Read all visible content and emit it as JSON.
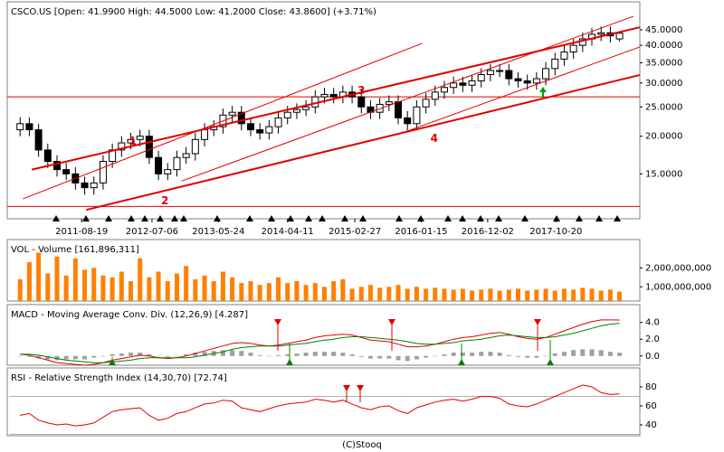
{
  "chart_data": [
    {
      "type": "candlestick",
      "title": "CSCO.US [Open: 41.9900 High: 44.5000 Low: 41.2000 Close: 43.8600] (+3.71%)",
      "log": true,
      "xlim": [
        -1.2,
        67.2
      ],
      "ylim": [
        10.8,
        54.6
      ],
      "yticks": [
        {
          "value": 15,
          "label": "15.0000"
        },
        {
          "value": 20,
          "label": "20.0000"
        },
        {
          "value": 25,
          "label": "25.0000"
        },
        {
          "value": 30,
          "label": "30.0000"
        },
        {
          "value": 35,
          "label": "35.0000"
        },
        {
          "value": 40,
          "label": "40.0000"
        },
        {
          "value": 45,
          "label": "45.0000"
        }
      ],
      "xticks": [
        {
          "value": 6.67,
          "label": "2011-08-19"
        },
        {
          "value": 14.3,
          "label": "2012-07-06"
        },
        {
          "value": 21.5,
          "label": "2013-05-24"
        },
        {
          "value": 29.0,
          "label": "2014-04-11"
        },
        {
          "value": 36.3,
          "label": "2015-02-27"
        },
        {
          "value": 43.5,
          "label": "2016-01-15"
        },
        {
          "value": 50.7,
          "label": "2016-12-02"
        },
        {
          "value": 58.1,
          "label": "2017-10-20"
        }
      ],
      "open": [
        21,
        22,
        21,
        18,
        16.5,
        15.5,
        15,
        14,
        13.5,
        14,
        16.5,
        18,
        19,
        19.5,
        20,
        17,
        15,
        15.5,
        17,
        17.5,
        19.5,
        21,
        21.5,
        23.5,
        24,
        22,
        21,
        20.5,
        21.5,
        23,
        24,
        24.5,
        25,
        27,
        27.5,
        27,
        28,
        27,
        25,
        24,
        25.5,
        26,
        23,
        22,
        25,
        26.5,
        28,
        29,
        30,
        29.5,
        30.5,
        32,
        33,
        33,
        31,
        30.5,
        30,
        31,
        33.5,
        36,
        38,
        40,
        42,
        43.5,
        44,
        41.99
      ],
      "high": [
        23.1,
        23.1,
        22.0,
        18.9,
        17.3,
        16.3,
        15.8,
        14.7,
        14.7,
        17.3,
        18.9,
        20.0,
        20.5,
        21.0,
        21.0,
        17.9,
        16.3,
        17.9,
        18.4,
        20.5,
        22.1,
        22.6,
        24.7,
        25.2,
        25.2,
        23.1,
        22.1,
        22.6,
        24.2,
        25.2,
        25.7,
        26.3,
        28.4,
        28.9,
        28.9,
        29.4,
        29.4,
        28.4,
        26.3,
        26.8,
        27.3,
        27.3,
        24.2,
        26.3,
        27.8,
        29.4,
        30.5,
        31.5,
        31.5,
        32.0,
        33.6,
        34.7,
        34.7,
        34.7,
        32.6,
        32.0,
        32.6,
        35.2,
        37.8,
        39.9,
        42.0,
        44.1,
        45.7,
        46.2,
        46.2,
        44.5
      ],
      "low": [
        20.0,
        20.0,
        17.1,
        15.7,
        14.7,
        14.3,
        13.3,
        12.8,
        12.8,
        13.3,
        15.7,
        17.1,
        18.1,
        18.5,
        16.2,
        14.3,
        14.3,
        14.7,
        16.2,
        16.6,
        18.5,
        20.0,
        20.4,
        22.3,
        20.9,
        20.0,
        19.5,
        19.5,
        20.4,
        21.9,
        22.8,
        23.3,
        23.8,
        25.7,
        25.7,
        25.7,
        25.7,
        23.8,
        22.8,
        22.8,
        24.2,
        21.9,
        20.9,
        20.9,
        23.8,
        25.2,
        26.6,
        27.6,
        28.0,
        28.0,
        29.0,
        30.4,
        31.4,
        29.5,
        29.0,
        28.5,
        28.5,
        29.5,
        31.8,
        34.2,
        36.1,
        38.0,
        39.9,
        41.3,
        40.9,
        41.2
      ],
      "close": [
        22,
        21,
        18,
        16.5,
        15.5,
        15,
        14,
        13.5,
        14,
        16.5,
        18,
        19,
        19.5,
        20,
        17,
        15,
        15.5,
        17,
        17.5,
        19.5,
        21,
        21.5,
        23.5,
        24,
        22,
        21,
        20.5,
        21.5,
        23,
        24,
        24.5,
        25,
        27,
        27.5,
        27,
        28,
        27,
        25,
        24,
        25.5,
        26,
        23,
        22,
        25,
        26.5,
        28,
        29,
        30,
        29.5,
        30.5,
        32,
        33,
        33,
        31,
        30.5,
        30,
        31,
        33.5,
        36,
        38,
        40,
        42,
        43.5,
        44,
        43,
        43.86
      ],
      "lines": [
        {
          "points": [
            [
              1.27,
              15.5
            ],
            [
              67.2,
              45.9
            ]
          ],
          "width": 2
        },
        {
          "points": [
            [
              7.16,
              11.4
            ],
            [
              67.2,
              31.9
            ]
          ],
          "width": 2
        },
        {
          "points": [
            [
              0.3,
              12.4
            ],
            [
              43.6,
              40.6
            ]
          ],
          "width": 1
        },
        {
          "points": [
            [
              17.5,
              14.2
            ],
            [
              66.5,
              49.9
            ]
          ],
          "width": 1
        },
        {
          "points": [
            [
              42,
              20.8
            ],
            [
              67.2,
              39.5
            ]
          ],
          "width": 1
        }
      ],
      "hlines": [
        27.0,
        11.7
      ],
      "line_color": "#e00000",
      "labels": [
        {
          "text": "1",
          "x": 12.2,
          "y": 19.2
        },
        {
          "text": "2",
          "x": 15.7,
          "y": 12.2
        },
        {
          "text": "3",
          "x": 37,
          "y": 28.3
        },
        {
          "text": "4",
          "x": 44.9,
          "y": 19.6
        }
      ]
    },
    {
      "type": "bar",
      "title": "VOL - Volume [161,896,311]",
      "xlim": [
        -1.2,
        67.2
      ],
      "ylim": [
        250000000,
        3350000000
      ],
      "color": "#ff8000",
      "yticks": [
        {
          "value": 1000000000,
          "label": "1,000,000,000"
        },
        {
          "value": 2000000000,
          "label": "2,000,000,000"
        }
      ],
      "values": [
        1400000000.0,
        2300000000.0,
        2800000000.0,
        1700000000.0,
        2600000000.0,
        1600000000.0,
        2500000000.0,
        1900000000.0,
        2000000000.0,
        1600000000.0,
        1500000000.0,
        1800000000.0,
        1300000000.0,
        2500000000.0,
        1500000000.0,
        1800000000.0,
        1300000000.0,
        1700000000.0,
        2100000000.0,
        1400000000.0,
        1600000000.0,
        1300000000.0,
        1800000000.0,
        1500000000.0,
        1200000000.0,
        1300000000.0,
        1100000000.0,
        1200000000.0,
        1500000000.0,
        1200000000.0,
        1300000000.0,
        1100000000.0,
        1200000000.0,
        1000000000.0,
        1300000000.0,
        1400000000.0,
        900000000.0,
        1000000000.0,
        1100000000.0,
        950000000.0,
        1000000000.0,
        1100000000.0,
        900000000.0,
        1000000000.0,
        900000000.0,
        950000000.0,
        900000000.0,
        850000000.0,
        900000000.0,
        800000000.0,
        850000000.0,
        900000000.0,
        800000000.0,
        850000000.0,
        900000000.0,
        800000000.0,
        850000000.0,
        900000000.0,
        800000000.0,
        900000000.0,
        850000000.0,
        950000000.0,
        900000000.0,
        800000000.0,
        850000000.0,
        750000000.0
      ]
    },
    {
      "type": "line",
      "title": "MACD - Moving Average Conv. Div. (12,26,9) [4.287]",
      "xlim": [
        -1.2,
        67.2
      ],
      "ylim": [
        -1.1,
        5.8
      ],
      "yticks": [
        {
          "value": 0,
          "label": "0.0"
        },
        {
          "value": 2,
          "label": "2.0"
        },
        {
          "value": 4,
          "label": "4.0"
        }
      ],
      "bars": [
        0.0,
        -0.1,
        -0.3,
        -0.4,
        -0.5,
        -0.4,
        -0.4,
        -0.4,
        -0.2,
        0.0,
        0.2,
        0.3,
        0.4,
        0.4,
        0.2,
        0.0,
        -0.1,
        0.0,
        0.2,
        0.4,
        0.5,
        0.6,
        0.7,
        0.7,
        0.6,
        0.4,
        0.1,
        0.0,
        0.1,
        0.2,
        0.3,
        0.4,
        0.5,
        0.5,
        0.5,
        0.4,
        0.2,
        -0.1,
        -0.3,
        -0.3,
        -0.3,
        -0.5,
        -0.6,
        -0.4,
        -0.2,
        0.0,
        0.2,
        0.4,
        0.4,
        0.4,
        0.5,
        0.5,
        0.4,
        0.1,
        -0.1,
        -0.2,
        -0.2,
        0.0,
        0.3,
        0.5,
        0.7,
        0.8,
        0.8,
        0.7,
        0.5,
        0.4
      ],
      "bar_color": "#a0a0a0",
      "series": [
        {
          "color": "#e00000",
          "values": [
            0.2,
            0.1,
            -0.2,
            -0.5,
            -0.8,
            -0.9,
            -1.0,
            -1.1,
            -1.0,
            -0.8,
            -0.5,
            -0.3,
            -0.1,
            0.1,
            0.0,
            -0.2,
            -0.3,
            -0.2,
            0.0,
            0.3,
            0.6,
            0.9,
            1.2,
            1.5,
            1.6,
            1.5,
            1.3,
            1.2,
            1.3,
            1.5,
            1.7,
            1.9,
            2.2,
            2.4,
            2.5,
            2.6,
            2.5,
            2.2,
            1.9,
            1.8,
            1.7,
            1.4,
            1.1,
            1.1,
            1.2,
            1.4,
            1.7,
            2.0,
            2.2,
            2.3,
            2.5,
            2.7,
            2.8,
            2.6,
            2.3,
            2.1,
            2.0,
            2.2,
            2.6,
            3.0,
            3.4,
            3.8,
            4.1,
            4.3,
            4.3,
            4.287
          ]
        },
        {
          "color": "#008000",
          "values": [
            0.2,
            0.2,
            0.1,
            -0.1,
            -0.3,
            -0.5,
            -0.6,
            -0.7,
            -0.8,
            -0.8,
            -0.7,
            -0.6,
            -0.5,
            -0.3,
            -0.2,
            -0.2,
            -0.2,
            -0.2,
            -0.2,
            -0.1,
            0.1,
            0.3,
            0.5,
            0.8,
            1.0,
            1.1,
            1.2,
            1.2,
            1.2,
            1.3,
            1.4,
            1.5,
            1.7,
            1.9,
            2.0,
            2.2,
            2.3,
            2.3,
            2.2,
            2.1,
            2.0,
            1.9,
            1.7,
            1.5,
            1.4,
            1.4,
            1.5,
            1.6,
            1.8,
            1.9,
            2.0,
            2.2,
            2.4,
            2.5,
            2.4,
            2.3,
            2.2,
            2.2,
            2.3,
            2.5,
            2.7,
            3.0,
            3.3,
            3.6,
            3.8,
            3.9
          ]
        }
      ]
    },
    {
      "type": "line",
      "title": "RSI - Relative Strength Index (14,30,70) [72.74]",
      "xlim": [
        -1.2,
        67.2
      ],
      "ylim": [
        28.6,
        97.1
      ],
      "yticks": [
        40,
        60,
        80
      ],
      "levels": [
        30,
        70
      ],
      "series": [
        {
          "color": "#e00000",
          "values": [
            50,
            52,
            45,
            42,
            40,
            41,
            39,
            40,
            42,
            48,
            54,
            56,
            57,
            58,
            50,
            45,
            47,
            52,
            54,
            58,
            62,
            63,
            66,
            65,
            58,
            56,
            54,
            57,
            60,
            62,
            63,
            64,
            67,
            66,
            64,
            66,
            62,
            58,
            56,
            59,
            60,
            55,
            52,
            58,
            61,
            64,
            66,
            67,
            65,
            67,
            70,
            70,
            68,
            62,
            60,
            59,
            62,
            66,
            70,
            74,
            78,
            82,
            80,
            74,
            72,
            72.74
          ]
        }
      ]
    }
  ],
  "footer": "(C)Stooq"
}
